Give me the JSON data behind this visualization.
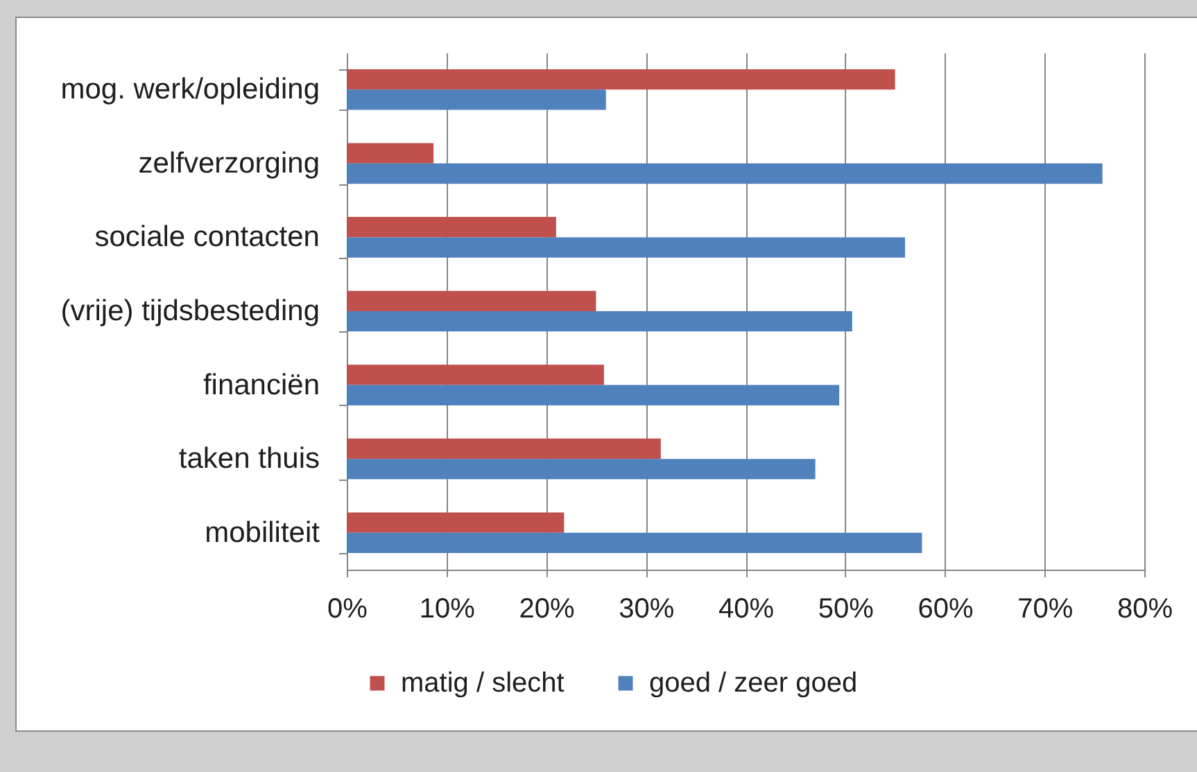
{
  "chart_data": {
    "type": "bar",
    "orientation": "horizontal",
    "categories": [
      "mog. werk/opleiding",
      "zelfverzorging",
      "sociale contacten",
      "(vrije) tijdsbesteding",
      "financiën",
      "taken thuis",
      "mobiliteit"
    ],
    "series": [
      {
        "name": "matig / slecht",
        "color": "#c0504d",
        "values": [
          55,
          8.7,
          21,
          25,
          25.8,
          31.5,
          21.8
        ]
      },
      {
        "name": "goed / zeer goed",
        "color": "#4f81bd",
        "values": [
          26,
          75.8,
          56,
          50.7,
          49.4,
          47,
          57.7
        ]
      }
    ],
    "xlim": [
      0,
      80
    ],
    "xticks": [
      {
        "value": 0,
        "label": "0%"
      },
      {
        "value": 10,
        "label": "10%"
      },
      {
        "value": 20,
        "label": "20%"
      },
      {
        "value": 30,
        "label": "30%"
      },
      {
        "value": 40,
        "label": "40%"
      },
      {
        "value": 50,
        "label": "50%"
      },
      {
        "value": 60,
        "label": "60%"
      },
      {
        "value": 70,
        "label": "70%"
      },
      {
        "value": 80,
        "label": "80%"
      }
    ],
    "grid": "x",
    "legend": "bottom"
  }
}
